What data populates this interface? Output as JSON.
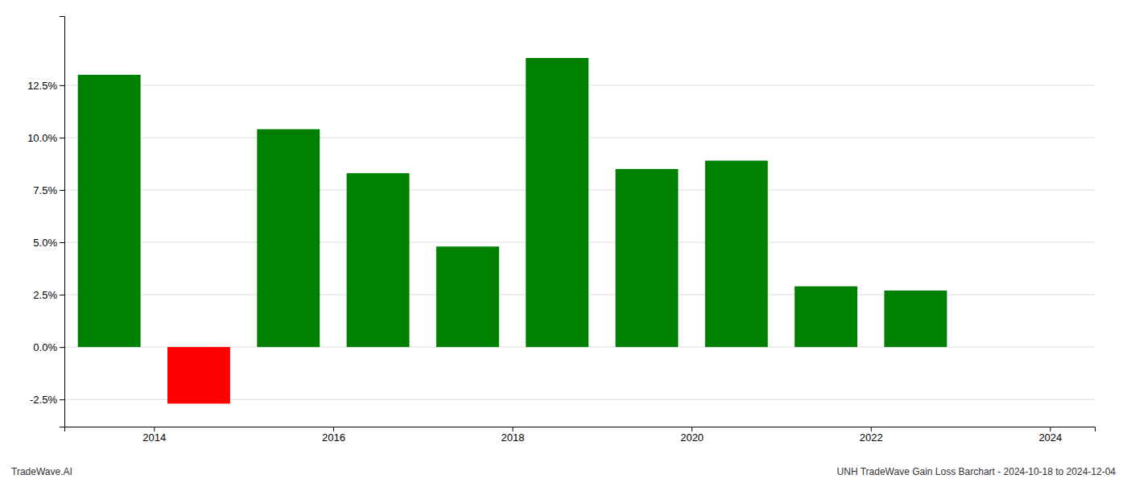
{
  "chart_data": {
    "type": "bar",
    "x": [
      2013.5,
      2014.5,
      2015.5,
      2016.5,
      2017.5,
      2018.5,
      2019.5,
      2020.5,
      2021.5,
      2022.5
    ],
    "values": [
      0.13,
      -0.027,
      0.104,
      0.083,
      0.048,
      0.138,
      0.085,
      0.089,
      0.029,
      0.027
    ],
    "colors": [
      "#008000",
      "#ff0000",
      "#008000",
      "#008000",
      "#008000",
      "#008000",
      "#008000",
      "#008000",
      "#008000",
      "#008000"
    ],
    "xlim": [
      2013.0,
      2024.5
    ],
    "xticks": [
      2014,
      2016,
      2018,
      2020,
      2022,
      2024
    ],
    "ylim": [
      -0.038,
      0.158
    ],
    "yticks": [
      {
        "value": -0.025,
        "label": "-2.5%"
      },
      {
        "value": 0.0,
        "label": "0.0%"
      },
      {
        "value": 0.025,
        "label": "2.5%"
      },
      {
        "value": 0.05,
        "label": "5.0%"
      },
      {
        "value": 0.075,
        "label": "7.5%"
      },
      {
        "value": 0.1,
        "label": "10.0%"
      },
      {
        "value": 0.125,
        "label": "12.5%"
      }
    ],
    "grid": true,
    "annotations": [
      "TradeWave.AI",
      "UNH TradeWave Gain Loss Barchart - 2024-10-18 to 2024-12-04"
    ]
  }
}
